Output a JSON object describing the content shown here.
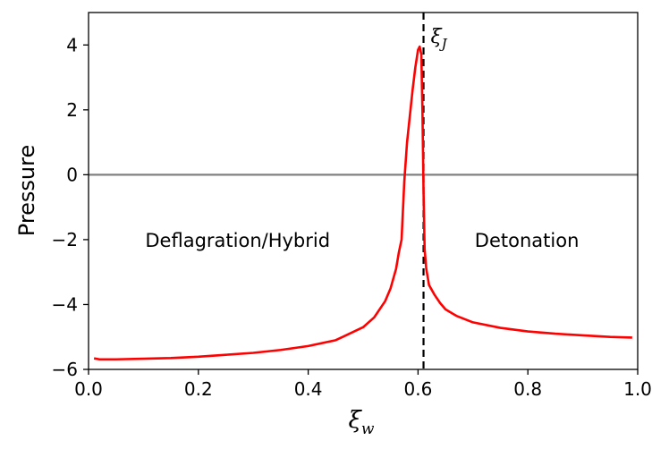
{
  "chart_data": {
    "type": "line",
    "xlabel": "ξ_w",
    "ylabel": "Pressure",
    "xlim": [
      0.0,
      1.0
    ],
    "ylim": [
      -6,
      5
    ],
    "x_ticks": [
      "0.0",
      "0.2",
      "0.4",
      "0.6",
      "0.8",
      "1.0"
    ],
    "y_ticks": [
      "−6",
      "−4",
      "−2",
      "0",
      "2",
      "4"
    ],
    "grid": false,
    "series": [
      {
        "color": "#ff0000",
        "x": [
          0.01,
          0.02,
          0.05,
          0.1,
          0.15,
          0.2,
          0.25,
          0.3,
          0.35,
          0.4,
          0.45,
          0.5,
          0.52,
          0.54,
          0.55,
          0.56,
          0.565,
          0.57,
          0.575,
          0.58,
          0.585,
          0.59,
          0.595,
          0.6,
          0.603,
          0.606,
          0.608,
          0.61,
          0.612,
          0.615,
          0.62,
          0.63,
          0.64,
          0.65,
          0.67,
          0.7,
          0.75,
          0.8,
          0.85,
          0.9,
          0.95,
          0.99
        ],
        "y": [
          -5.66,
          -5.69,
          -5.69,
          -5.67,
          -5.65,
          -5.61,
          -5.55,
          -5.49,
          -5.4,
          -5.28,
          -5.1,
          -4.7,
          -4.4,
          -3.9,
          -3.5,
          -2.9,
          -2.4,
          -2.0,
          -0.2,
          1.0,
          1.8,
          2.6,
          3.3,
          3.85,
          3.95,
          3.7,
          2.0,
          -0.5,
          -2.3,
          -2.9,
          -3.4,
          -3.7,
          -3.95,
          -4.15,
          -4.35,
          -4.55,
          -4.72,
          -4.83,
          -4.9,
          -4.95,
          -5.0,
          -5.02
        ]
      }
    ],
    "reference_lines": [
      {
        "orientation": "horizontal",
        "y": 0,
        "color": "#808080",
        "style": "solid"
      },
      {
        "orientation": "vertical",
        "x": 0.61,
        "color": "#000000",
        "style": "dashed",
        "label": "ξ_J"
      }
    ],
    "annotations": [
      {
        "text": "Deflagration/Hybrid",
        "x": 0.1,
        "y": -2.0
      },
      {
        "text": "Detonation",
        "x": 0.7,
        "y": -2.0
      }
    ]
  }
}
